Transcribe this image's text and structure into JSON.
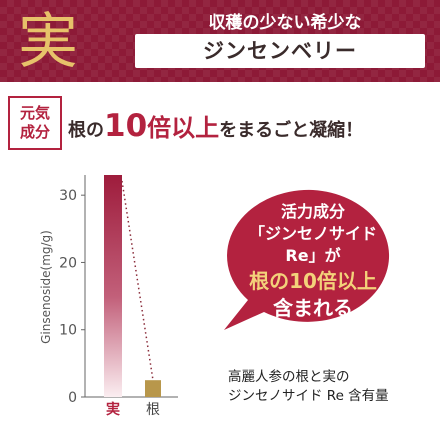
{
  "banner": {
    "kanji": "実",
    "tagline": "収穫の少ない希少な",
    "berry_name": "ジンセンベリー"
  },
  "headline": {
    "badge": [
      "元気",
      "成分"
    ],
    "pre": "根の",
    "number": "10",
    "middle": "倍以上",
    "post": "をまるごと凝縮！"
  },
  "bubble": {
    "lines": [
      "活力成分",
      "「ジンセノサイド",
      "Re」が",
      "根の10倍以上",
      "含まれる"
    ]
  },
  "caption": [
    "高麗人参の根と実の",
    "ジンセノサイド Re 含有量"
  ],
  "colors": {
    "banner": "#8d1a37",
    "accent": "#b3223f",
    "gold": "#e7c26a",
    "root_bar": "#b8974b"
  },
  "chart_data": {
    "type": "bar",
    "ylabel": "Ginsenoside(mg/g)",
    "xlabel": "",
    "ylim": [
      0,
      33
    ],
    "yticks": [
      0,
      10,
      20,
      30
    ],
    "grid": false,
    "categories": [
      "実",
      "根"
    ],
    "values": [
      33,
      2.5
    ]
  }
}
